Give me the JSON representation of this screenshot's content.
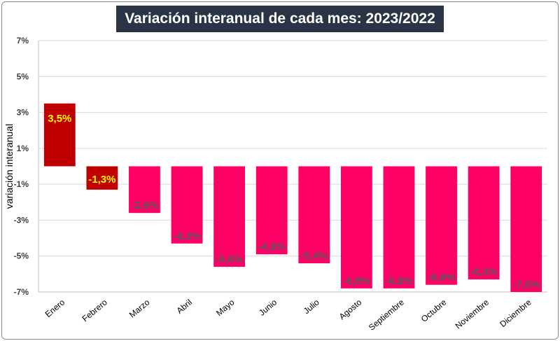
{
  "chart_data": {
    "type": "bar",
    "title": "Variación interanual de cada mes: 2023/2022",
    "xlabel": "",
    "ylabel": "variación interanual",
    "ylim": [
      -7,
      7
    ],
    "yticks": [
      7,
      5,
      3,
      1,
      -1,
      -3,
      -5,
      -7
    ],
    "ytick_labels": [
      "7%",
      "5%",
      "3%",
      "1%",
      "-1%",
      "-3%",
      "-5%",
      "-7%"
    ],
    "grid": true,
    "categories": [
      "Enero",
      "Febrero",
      "Marzo",
      "Abril",
      "Mayo",
      "Junio",
      "Julio",
      "Agosto",
      "Septiembre",
      "Octubre",
      "Noviembre",
      "Diciembre"
    ],
    "values": [
      3.5,
      -1.3,
      -2.6,
      -4.3,
      -5.6,
      -4.9,
      -5.4,
      -6.8,
      -6.8,
      -6.6,
      -6.3,
      -7.0
    ],
    "data_labels": [
      "3,5%",
      "-1,3%",
      "-2,6%",
      "-4,3%",
      "-5,6%",
      "-4,9%",
      "-5,4%",
      "-6,8%",
      "-6,8%",
      "-6,6%",
      "-6,3%",
      "-7,0%"
    ],
    "bar_colors": [
      "#c00000",
      "#c00000",
      "#ff0066",
      "#ff0066",
      "#ff0066",
      "#ff0066",
      "#ff0066",
      "#ff0066",
      "#ff0066",
      "#ff0066",
      "#ff0066",
      "#ff0066"
    ],
    "label_colors": [
      "#ffff00",
      "#ffff00",
      "#595959",
      "#595959",
      "#595959",
      "#595959",
      "#595959",
      "#595959",
      "#595959",
      "#595959",
      "#595959",
      "#595959"
    ],
    "title_background": "#2b3445",
    "grid_color": "#d9d9d9"
  }
}
